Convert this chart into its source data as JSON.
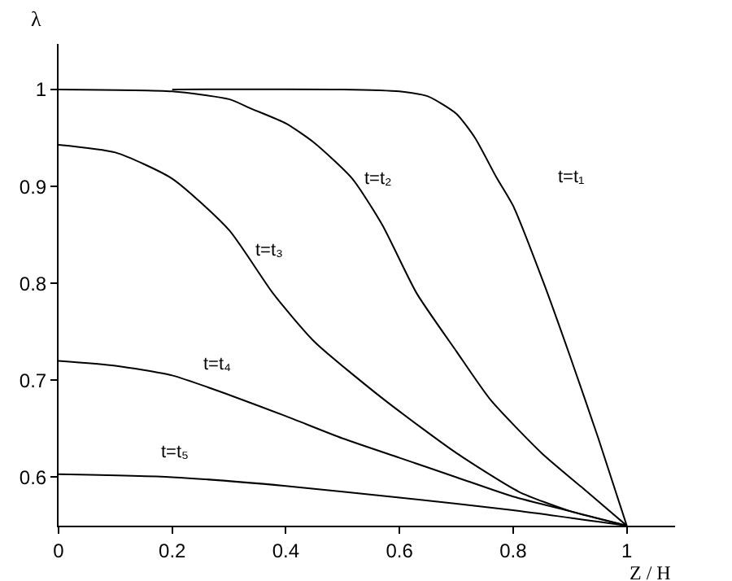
{
  "chart_data": {
    "type": "line",
    "xlabel": "Z / H",
    "ylabel": "λ",
    "xlim": [
      0,
      1.085
    ],
    "xticks": [
      0,
      0.2,
      0.4,
      0.6,
      0.8,
      1
    ],
    "ylim": [
      0.55,
      1.047
    ],
    "yticks": [
      0.6,
      0.7,
      0.8,
      0.9,
      1
    ],
    "marker": "none",
    "line_style": "solid",
    "series": [
      {
        "name": "t=t₁",
        "color": "#000000",
        "x": [
          0.2,
          0.5,
          0.6,
          0.65,
          0.7,
          0.733,
          0.77,
          0.8,
          0.854,
          0.9,
          0.95,
          1
        ],
        "values": [
          1,
          1,
          0.998,
          0.993,
          0.975,
          0.95,
          0.91,
          0.88,
          0.8,
          0.725,
          0.64,
          0.55
        ]
      },
      {
        "name": "t=t₂",
        "color": "#000000",
        "x": [
          0,
          0.2,
          0.3,
          0.34,
          0.4,
          0.45,
          0.517,
          0.57,
          0.63,
          0.7,
          0.76,
          0.85,
          0.92,
          1
        ],
        "values": [
          1,
          0.998,
          0.99,
          0.98,
          0.965,
          0.945,
          0.908,
          0.86,
          0.79,
          0.73,
          0.68,
          0.625,
          0.59,
          0.55
        ]
      },
      {
        "name": "t=t₃",
        "color": "#000000",
        "x": [
          0,
          0.1,
          0.2,
          0.3,
          0.377,
          0.45,
          0.573,
          0.7,
          0.81,
          0.9,
          1
        ],
        "values": [
          0.943,
          0.935,
          0.908,
          0.855,
          0.79,
          0.74,
          0.68,
          0.625,
          0.585,
          0.565,
          0.55
        ]
      },
      {
        "name": "t=t₄",
        "color": "#000000",
        "x": [
          0,
          0.1,
          0.2,
          0.3,
          0.4,
          0.5,
          0.6,
          0.7,
          0.8,
          0.9,
          1
        ],
        "values": [
          0.72,
          0.715,
          0.705,
          0.685,
          0.663,
          0.64,
          0.62,
          0.6,
          0.58,
          0.565,
          0.55
        ]
      },
      {
        "name": "t=t₅",
        "color": "#000000",
        "x": [
          0,
          0.2,
          0.4,
          0.6,
          0.8,
          1
        ],
        "values": [
          0.603,
          0.6,
          0.591,
          0.579,
          0.566,
          0.55
        ]
      }
    ]
  }
}
